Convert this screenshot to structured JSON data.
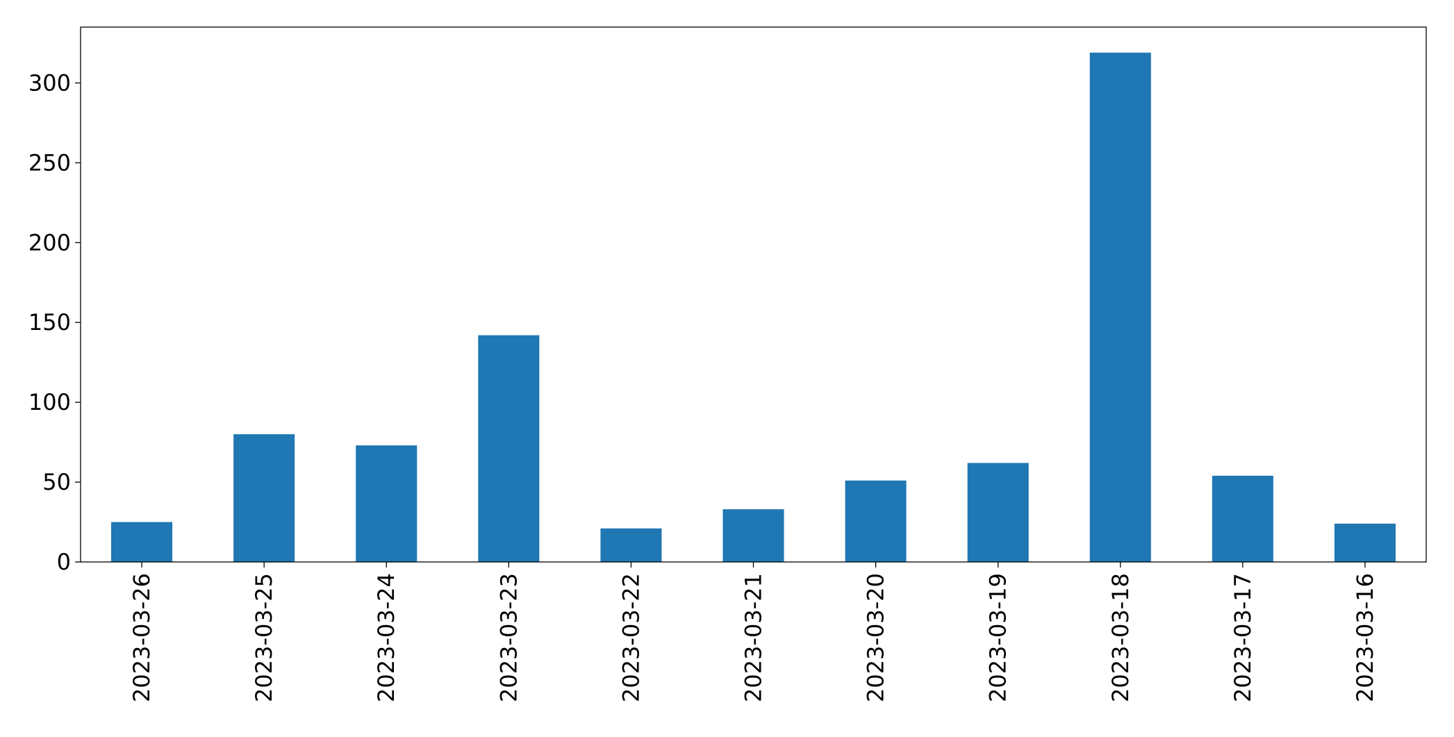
{
  "chart_data": {
    "type": "bar",
    "categories": [
      "2023-03-26",
      "2023-03-25",
      "2023-03-24",
      "2023-03-23",
      "2023-03-22",
      "2023-03-21",
      "2023-03-20",
      "2023-03-19",
      "2023-03-18",
      "2023-03-17",
      "2023-03-16"
    ],
    "values": [
      25,
      80,
      73,
      142,
      21,
      33,
      51,
      62,
      319,
      54,
      24
    ],
    "color": "#1f77b4",
    "ylim": [
      0,
      335
    ],
    "yticks": [
      0,
      50,
      100,
      150,
      200,
      250,
      300
    ],
    "grid": false
  }
}
